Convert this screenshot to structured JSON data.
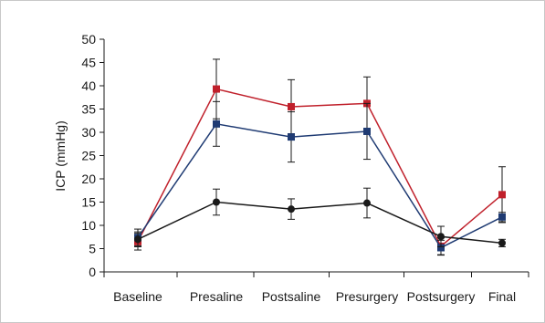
{
  "chart_data": {
    "type": "line",
    "title": "",
    "xlabel": "",
    "ylabel": "ICP (mmHg)",
    "ylim": [
      0,
      50
    ],
    "yticks": [
      0,
      5,
      10,
      15,
      20,
      25,
      30,
      35,
      40,
      45,
      50
    ],
    "categories": [
      "Baseline",
      "Presaline",
      "Postsaline",
      "Presurgery",
      "Postsurgery",
      "Final"
    ],
    "grid": false,
    "legend": "none",
    "series": [
      {
        "color": "#c0202b",
        "marker": "square",
        "values": [
          6.5,
          39.3,
          35.5,
          36.2,
          5.5,
          16.6
        ],
        "errors": [
          1.8,
          6.4,
          5.8,
          5.7,
          1.8,
          6.0
        ]
      },
      {
        "color": "#1f3b73",
        "marker": "square",
        "values": [
          7.4,
          31.8,
          29.0,
          30.2,
          5.2,
          11.8
        ],
        "errors": [
          1.8,
          4.8,
          5.4,
          6.0,
          1.6,
          1.0
        ]
      },
      {
        "color": "#1a1a1a",
        "marker": "circle",
        "values": [
          7.0,
          15.0,
          13.5,
          14.8,
          7.6,
          6.2
        ],
        "errors": [
          1.6,
          2.8,
          2.2,
          3.2,
          2.2,
          0.8
        ]
      }
    ]
  }
}
